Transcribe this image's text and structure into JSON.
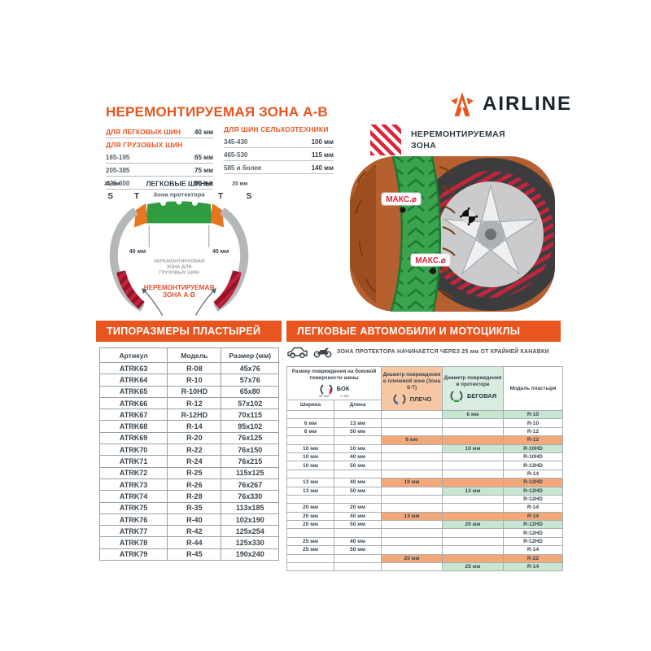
{
  "brand": {
    "name": "AIRLINE"
  },
  "top": {
    "title": "НЕРЕМОНТИРУЕМАЯ ЗОНА А-В",
    "passenger": {
      "label": "ДЛЯ ЛЕГКОВЫХ ШИН",
      "value": "40 мм"
    },
    "truck": {
      "label": "ДЛЯ ГРУЗОВЫХ ШИН",
      "rows": [
        [
          "165-195",
          "65 мм"
        ],
        [
          "205-385",
          "75 мм"
        ],
        [
          "425-600",
          "90 мм"
        ]
      ]
    },
    "agro": {
      "label": "ДЛЯ ШИН СЕЛЬХОЗТЕХНИКИ",
      "rows": [
        [
          "345-430",
          "100 мм"
        ],
        [
          "465-530",
          "115 мм"
        ],
        [
          "585 и более",
          "140 мм"
        ]
      ]
    }
  },
  "legend": {
    "line1": "НЕРЕМОНТИРУЕМАЯ",
    "line2": "ЗОНА"
  },
  "diagram": {
    "left_25": "25 мм",
    "right_25": "25 мм",
    "title": "ЛЕГКОВЫЕ ШИНЫ",
    "s_left": "S",
    "t_left": "T",
    "tread_label": "Зона протектора",
    "t_right": "T",
    "s_right": "S",
    "left_40": "40 мм",
    "right_40": "40 мм",
    "truck_zone_1": "НЕРЕМОНТИРУЕМАЯ",
    "truck_zone_2": "ЗОНА ДЛЯ",
    "truck_zone_3": "ГРУЗОВЫХ ШИН",
    "ab_zone_1": "НЕРЕМОНТИРУЕМАЯ",
    "ab_zone_2": "ЗОНА А-В"
  },
  "tire_photo": {
    "max_label_1": "МАКС.⌀",
    "max_label_2": "МАКС.⌀"
  },
  "patch_table": {
    "banner": "ТИПОРАЗМЕРЫ ПЛАСТЫРЕЙ",
    "headers": [
      "Артикул",
      "Модель",
      "Размер (мм)"
    ],
    "rows": [
      [
        "ATRK63",
        "R-08",
        "45x76"
      ],
      [
        "ATRK64",
        "R-10",
        "57x76"
      ],
      [
        "ATRK65",
        "R-10HD",
        "65x80"
      ],
      [
        "ATRK66",
        "R-12",
        "57x102"
      ],
      [
        "ATRK67",
        "R-12HD",
        "70x115"
      ],
      [
        "ATRK68",
        "R-14",
        "95x102"
      ],
      [
        "ATRK69",
        "R-20",
        "76x125"
      ],
      [
        "ATRK70",
        "R-22",
        "76x150"
      ],
      [
        "ATRK71",
        "R-24",
        "76x215"
      ],
      [
        "ATRK72",
        "R-25",
        "115x125"
      ],
      [
        "ATRK73",
        "R-26",
        "76x267"
      ],
      [
        "ATRK74",
        "R-28",
        "76x330"
      ],
      [
        "ATRK75",
        "R-35",
        "113x185"
      ],
      [
        "ATRK76",
        "R-40",
        "102x190"
      ],
      [
        "ATRK77",
        "R-42",
        "125x254"
      ],
      [
        "ATRK78",
        "R-44",
        "125x330"
      ],
      [
        "ATRK79",
        "R-45",
        "190x240"
      ]
    ]
  },
  "damage_table": {
    "banner": "ЛЕГКОВЫЕ АВТОМОБИЛИ И МОТОЦИКЛЫ",
    "note": "ЗОНА ПРОТЕКТОРА НАЧИНАЕТСЯ ЧЕРЕЗ 25 мм ОТ КРАЙНЕЙ КАНАВКИ",
    "side": {
      "title": "Размер повреждения на боковой поверхности шины",
      "icon_label": "БОК",
      "dim_w": "W мм",
      "dim_l": "L мм",
      "sub": [
        "Ширина",
        "Длина"
      ]
    },
    "shoulder": {
      "title": "Диаметр повреждения в плечевой зоне (Зона S-T)",
      "icon_label": "ПЛЕЧО"
    },
    "tread": {
      "title": "Диаметр повреждения в протекторе",
      "icon_label": "БЕГОВАЯ"
    },
    "model_title": "Модель пластыря",
    "rows": [
      {
        "c": [
          "",
          "",
          "",
          "6 мм",
          "R-10"
        ],
        "hl": "tread"
      },
      {
        "c": [
          "6 мм",
          "13 мм",
          "",
          "",
          "R-10"
        ],
        "hl": ""
      },
      {
        "c": [
          "6 мм",
          "50 мм",
          "",
          "",
          "R-12"
        ],
        "hl": ""
      },
      {
        "c": [
          "",
          "",
          "6 мм",
          "",
          "R-12"
        ],
        "hl": "shoulder"
      },
      {
        "c": [
          "10 мм",
          "10 мм",
          "",
          "10 мм",
          "R-10HD"
        ],
        "hl": "tread"
      },
      {
        "c": [
          "10 мм",
          "40 мм",
          "",
          "",
          "R-10HD"
        ],
        "hl": ""
      },
      {
        "c": [
          "10 мм",
          "50 мм",
          "",
          "",
          "R-12HD"
        ],
        "hl": ""
      },
      {
        "c": [
          "",
          "",
          "",
          "",
          "R-14"
        ],
        "hl": ""
      },
      {
        "c": [
          "13 мм",
          "40 мм",
          "10 мм",
          "",
          "R-12HD"
        ],
        "hl": "shoulder"
      },
      {
        "c": [
          "13 мм",
          "50 мм",
          "",
          "13 мм",
          "R-12HD"
        ],
        "hl": "tread"
      },
      {
        "c": [
          "",
          "",
          "",
          "",
          "R-12HD"
        ],
        "hl": ""
      },
      {
        "c": [
          "20 мм",
          "20 мм",
          "",
          "",
          "R-14"
        ],
        "hl": ""
      },
      {
        "c": [
          "20 мм",
          "40 мм",
          "13 мм",
          "",
          "R-14"
        ],
        "hl": "shoulder"
      },
      {
        "c": [
          "20 мм",
          "50 мм",
          "",
          "20 мм",
          "R-12HD"
        ],
        "hl": "tread"
      },
      {
        "c": [
          "",
          "",
          "",
          "",
          "R-12HD"
        ],
        "hl": ""
      },
      {
        "c": [
          "25 мм",
          "40 мм",
          "",
          "",
          "R-12HD"
        ],
        "hl": ""
      },
      {
        "c": [
          "25 мм",
          "50 мм",
          "",
          "",
          "R-14"
        ],
        "hl": ""
      },
      {
        "c": [
          "",
          "",
          "20 мм",
          "",
          "R-22"
        ],
        "hl": "shoulder"
      },
      {
        "c": [
          "",
          "",
          "",
          "25 мм",
          "R-14"
        ],
        "hl": "tread"
      }
    ]
  },
  "colors": {
    "accent_orange": "#E8551F",
    "dark_text": "#323E48",
    "tread_green": "#2E9C41",
    "shoulder_orange": "#E8761F",
    "nonrepair_red": "#C5203A",
    "hl_green": "#C8E6D2",
    "hl_orange": "#F2A878"
  }
}
